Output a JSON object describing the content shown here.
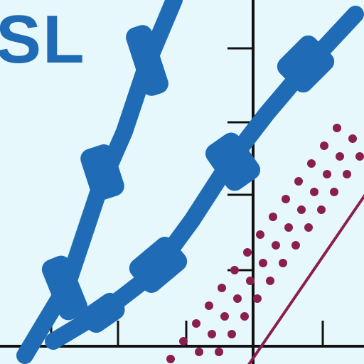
{
  "label": "SL",
  "colors": {
    "background": "#e6f8fb",
    "blue": "#1f6bb5",
    "maroon": "#8a1f4f",
    "axis": "#111111"
  }
}
